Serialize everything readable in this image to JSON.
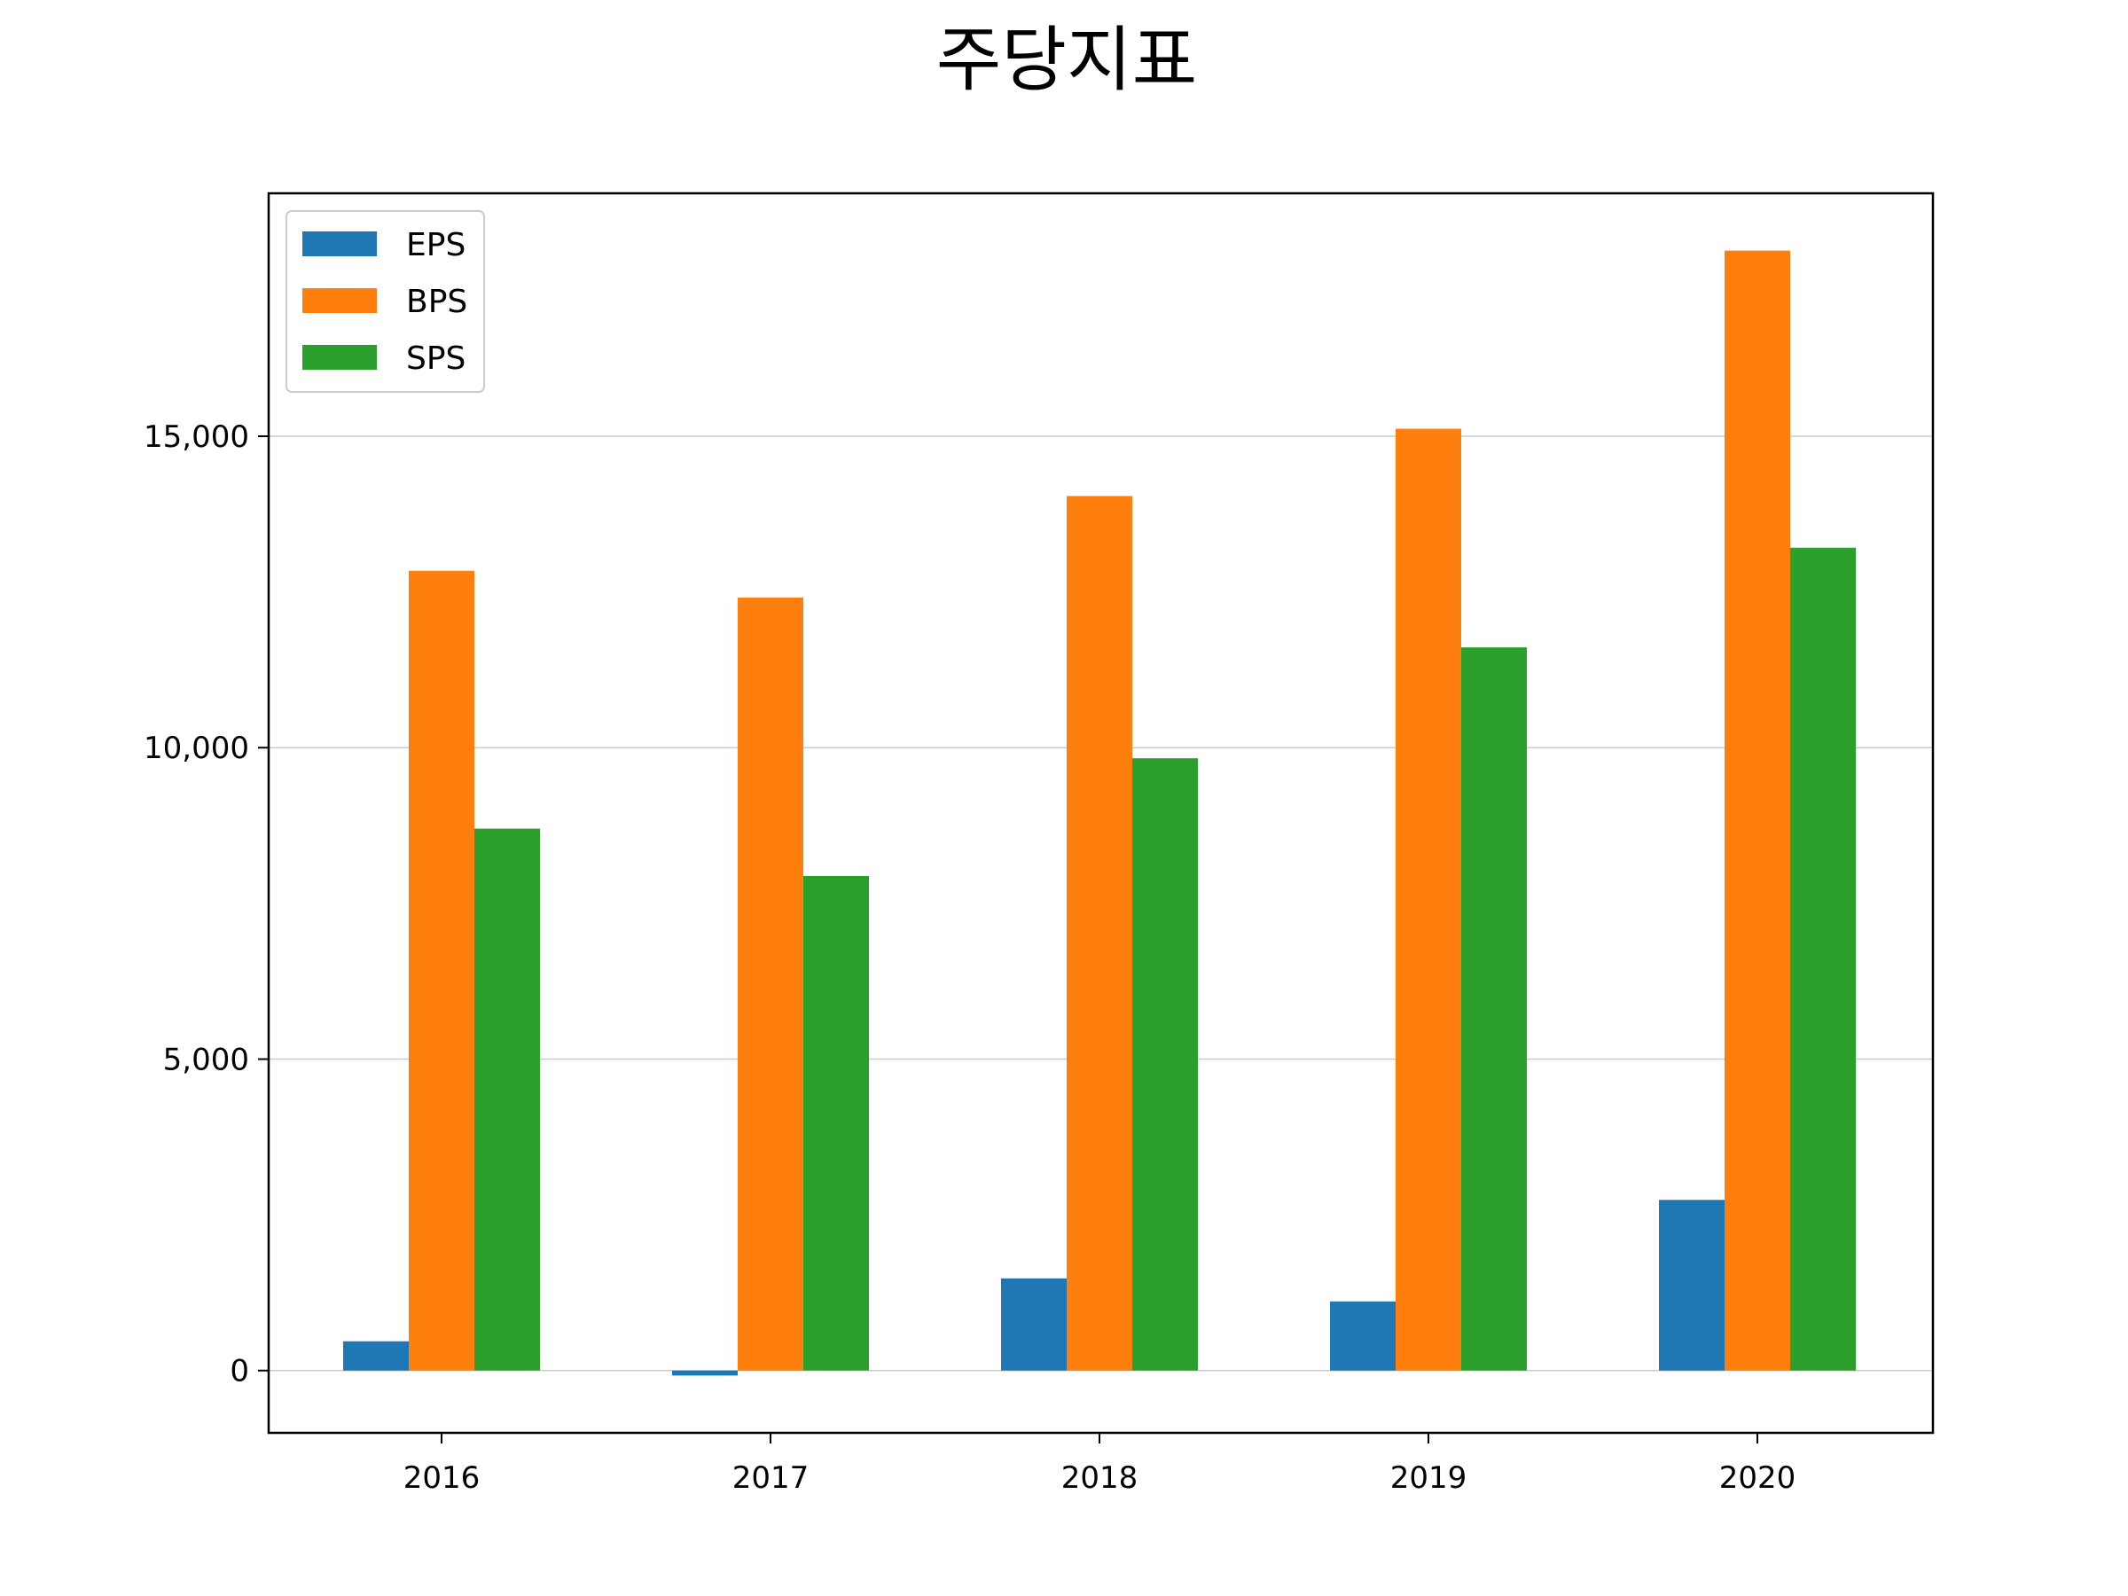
{
  "chart_data": {
    "type": "bar",
    "title": "주당지표",
    "xlabel": "",
    "ylabel": "",
    "categories": [
      "2016",
      "2017",
      "2018",
      "2019",
      "2020"
    ],
    "series": [
      {
        "name": "EPS",
        "values": [
          470,
          -80,
          1480,
          1110,
          2740
        ],
        "color": "#1f77b4"
      },
      {
        "name": "BPS",
        "values": [
          12840,
          12410,
          14040,
          15120,
          17980
        ],
        "color": "#ff7f0e"
      },
      {
        "name": "SPS",
        "values": [
          8700,
          7940,
          9830,
          11610,
          13210
        ],
        "color": "#2ca02c"
      }
    ],
    "ylim": [
      -1000,
      18900
    ],
    "yticks": [
      0,
      5000,
      10000,
      15000
    ],
    "ytick_labels": [
      "0",
      "5,000",
      "10,000",
      "15,000"
    ],
    "grid": "y",
    "legend_position": "top-left"
  }
}
